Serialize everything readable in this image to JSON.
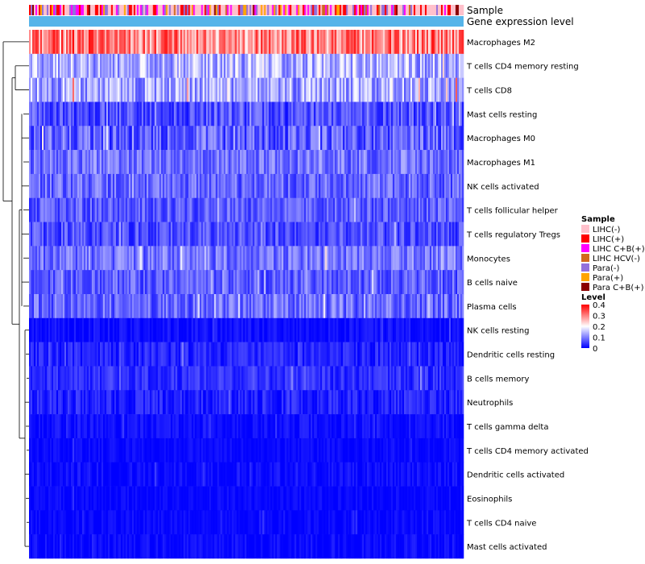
{
  "chart_data": {
    "type": "heatmap",
    "title": "",
    "annotation_rows": [
      "Sample",
      "Gene expression level"
    ],
    "row_labels": [
      "Macrophages M2",
      "T cells CD4 memory resting",
      "T cells CD8",
      "Mast cells resting",
      "Macrophages M0",
      "Macrophages M1",
      "NK cells activated",
      "T cells follicular helper",
      "T cells regulatory  Tregs",
      "Monocytes",
      "B cells naive",
      "Plasma cells",
      "NK cells resting",
      "Dendritic cells resting",
      "B cells memory",
      "Neutrophils",
      "T cells gamma delta",
      "T cells CD4 memory activated",
      "Dendritic cells activated",
      "Eosinophils",
      "T cells CD4 naive",
      "Mast cells activated"
    ],
    "approx_row_means": [
      0.3,
      0.14,
      0.13,
      0.06,
      0.07,
      0.09,
      0.08,
      0.07,
      0.06,
      0.09,
      0.07,
      0.08,
      0.01,
      0.025,
      0.035,
      0.025,
      0.01,
      0.005,
      0.008,
      0.004,
      0.004,
      0.006
    ],
    "approx_row_spread": [
      0.09,
      0.07,
      0.07,
      0.05,
      0.06,
      0.05,
      0.05,
      0.045,
      0.045,
      0.05,
      0.045,
      0.05,
      0.02,
      0.03,
      0.03,
      0.03,
      0.02,
      0.015,
      0.02,
      0.015,
      0.015,
      0.02
    ],
    "n_samples": 270,
    "legend": {
      "sample_title": "Sample",
      "sample_entries": [
        {
          "label": "LIHC(-)",
          "color": "#ffc0cb"
        },
        {
          "label": "LIHC(+)",
          "color": "#ff0000"
        },
        {
          "label": "LIHC C+B(+)",
          "color": "#ff00ff"
        },
        {
          "label": "LIHC HCV(-)",
          "color": "#d2691e"
        },
        {
          "label": "Para(-)",
          "color": "#9370db"
        },
        {
          "label": "Para(+)",
          "color": "#ffa500"
        },
        {
          "label": "Para C+B(+)",
          "color": "#8b0000"
        }
      ],
      "level_title": "Level",
      "level_ticks": [
        "0.4",
        "0.3",
        "0.2",
        "0.1",
        "0"
      ],
      "level_range": [
        0,
        0.4
      ],
      "level_colors": [
        "#0000ff",
        "#ffffff",
        "#ff0000"
      ]
    },
    "expression_annotation_color": "#56b4e9",
    "dendrogram": "row clustering (left)"
  }
}
